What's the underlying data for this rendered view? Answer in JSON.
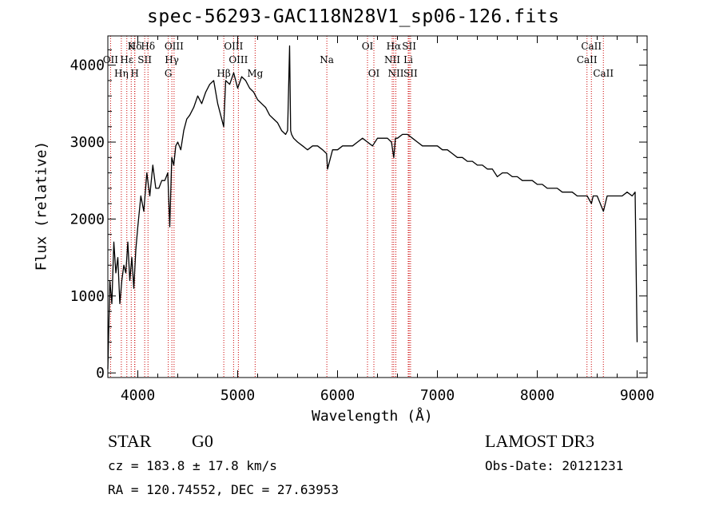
{
  "chart_data": {
    "type": "line",
    "title": "spec-56293-GAC118N28V1_sp06-126.fits",
    "xlabel": "Wavelength (Å)",
    "ylabel": "Flux (relative)",
    "xlim": [
      3700,
      9100
    ],
    "ylim": [
      -60,
      4380
    ],
    "xticks": [
      4000,
      5000,
      6000,
      7000,
      8000,
      9000
    ],
    "xtick_labels": [
      "4000",
      "5000",
      "6000",
      "7000",
      "8000",
      "9000"
    ],
    "yticks": [
      0,
      1000,
      2000,
      3000,
      4000
    ],
    "ytick_labels": [
      "0",
      "1000",
      "2000",
      "3000",
      "4000"
    ],
    "series": [
      {
        "name": "spectrum",
        "x": [
          3700,
          3720,
          3740,
          3760,
          3780,
          3800,
          3820,
          3840,
          3860,
          3880,
          3900,
          3920,
          3940,
          3960,
          3980,
          4000,
          4030,
          4060,
          4090,
          4120,
          4150,
          4180,
          4210,
          4240,
          4270,
          4300,
          4320,
          4340,
          4360,
          4380,
          4400,
          4430,
          4460,
          4490,
          4520,
          4560,
          4600,
          4640,
          4680,
          4720,
          4760,
          4800,
          4840,
          4860,
          4880,
          4920,
          4960,
          5000,
          5040,
          5080,
          5120,
          5160,
          5200,
          5240,
          5280,
          5320,
          5360,
          5400,
          5440,
          5480,
          5500,
          5520,
          5530,
          5540,
          5560,
          5600,
          5650,
          5700,
          5750,
          5800,
          5850,
          5890,
          5900,
          5950,
          6000,
          6050,
          6100,
          6150,
          6200,
          6250,
          6300,
          6350,
          6400,
          6450,
          6500,
          6540,
          6563,
          6580,
          6600,
          6650,
          6700,
          6750,
          6800,
          6850,
          6900,
          6950,
          7000,
          7050,
          7100,
          7150,
          7200,
          7250,
          7300,
          7350,
          7400,
          7450,
          7500,
          7550,
          7600,
          7650,
          7700,
          7750,
          7800,
          7850,
          7900,
          7950,
          8000,
          8050,
          8100,
          8150,
          8200,
          8250,
          8300,
          8350,
          8400,
          8450,
          8500,
          8542,
          8560,
          8600,
          8662,
          8700,
          8750,
          8800,
          8850,
          8900,
          8950,
          8980,
          9000
        ],
        "values": [
          50,
          1200,
          900,
          1700,
          1300,
          1500,
          900,
          1200,
          1400,
          1300,
          1700,
          1200,
          1500,
          1100,
          1600,
          1900,
          2300,
          2100,
          2600,
          2300,
          2700,
          2400,
          2400,
          2500,
          2500,
          2600,
          1900,
          2800,
          2700,
          2950,
          3000,
          2900,
          3150,
          3300,
          3350,
          3450,
          3600,
          3500,
          3650,
          3750,
          3800,
          3500,
          3300,
          3200,
          3800,
          3750,
          3900,
          3700,
          3850,
          3800,
          3700,
          3650,
          3550,
          3500,
          3450,
          3350,
          3300,
          3250,
          3150,
          3100,
          3150,
          4250,
          3150,
          3100,
          3050,
          3000,
          2950,
          2900,
          2950,
          2950,
          2900,
          2850,
          2650,
          2900,
          2900,
          2950,
          2950,
          2950,
          3000,
          3050,
          3000,
          2950,
          3050,
          3050,
          3050,
          3000,
          2800,
          3050,
          3050,
          3100,
          3100,
          3050,
          3000,
          2950,
          2950,
          2950,
          2950,
          2900,
          2900,
          2850,
          2800,
          2800,
          2750,
          2750,
          2700,
          2700,
          2650,
          2650,
          2550,
          2600,
          2600,
          2550,
          2550,
          2500,
          2500,
          2500,
          2450,
          2450,
          2400,
          2400,
          2400,
          2350,
          2350,
          2350,
          2300,
          2300,
          2300,
          2200,
          2300,
          2300,
          2100,
          2300,
          2300,
          2300,
          2300,
          2350,
          2300,
          2350,
          400
        ]
      }
    ],
    "lines": [
      {
        "name": "Hδ",
        "x": 3970,
        "row": 1
      },
      {
        "name": "K",
        "x": 3934,
        "row": 1
      },
      {
        "name": "Hε",
        "x": 3890,
        "row": 2
      },
      {
        "name": "SII",
        "x": 4069,
        "row": 2
      },
      {
        "name": "OII",
        "x": 3727,
        "row": 2
      },
      {
        "name": "H",
        "x": 3969,
        "row": 3
      },
      {
        "name": "Hη",
        "x": 3835,
        "row": 3
      },
      {
        "name": "Hδ",
        "x": 4102,
        "row": 1
      },
      {
        "name": "OIII",
        "x": 4363,
        "row": 1
      },
      {
        "name": "Hγ",
        "x": 4341,
        "row": 2
      },
      {
        "name": "G",
        "x": 4305,
        "row": 3
      },
      {
        "name": "Hβ",
        "x": 4861,
        "row": 3
      },
      {
        "name": "OIII",
        "x": 4959,
        "row": 1
      },
      {
        "name": "OIII",
        "x": 5007,
        "row": 2
      },
      {
        "name": "Mg",
        "x": 5175,
        "row": 3
      },
      {
        "name": "Na",
        "x": 5893,
        "row": 2
      },
      {
        "name": "OI",
        "x": 6300,
        "row": 1
      },
      {
        "name": "OI",
        "x": 6364,
        "row": 3
      },
      {
        "name": "Hα",
        "x": 6563,
        "row": 1
      },
      {
        "name": "NII",
        "x": 6548,
        "row": 2
      },
      {
        "name": "NII",
        "x": 6584,
        "row": 3
      },
      {
        "name": "SII",
        "x": 6717,
        "row": 1
      },
      {
        "name": "Li",
        "x": 6708,
        "row": 2
      },
      {
        "name": "SII",
        "x": 6731,
        "row": 3
      },
      {
        "name": "CaII",
        "x": 8542,
        "row": 1
      },
      {
        "name": "CaII",
        "x": 8498,
        "row": 2
      },
      {
        "name": "CaII",
        "x": 8662,
        "row": 3
      }
    ]
  },
  "info": {
    "object_class": "STAR",
    "subclass": "G0",
    "survey": "LAMOST DR3",
    "redshift": "cz = 183.8 ± 17.8 km/s",
    "obs_date": "Obs-Date: 20121231",
    "coords": "RA = 120.74552, DEC =  27.63953"
  },
  "colors": {
    "spectrum": "#000000",
    "line_marker": "#cc0000",
    "axes": "#000000"
  }
}
